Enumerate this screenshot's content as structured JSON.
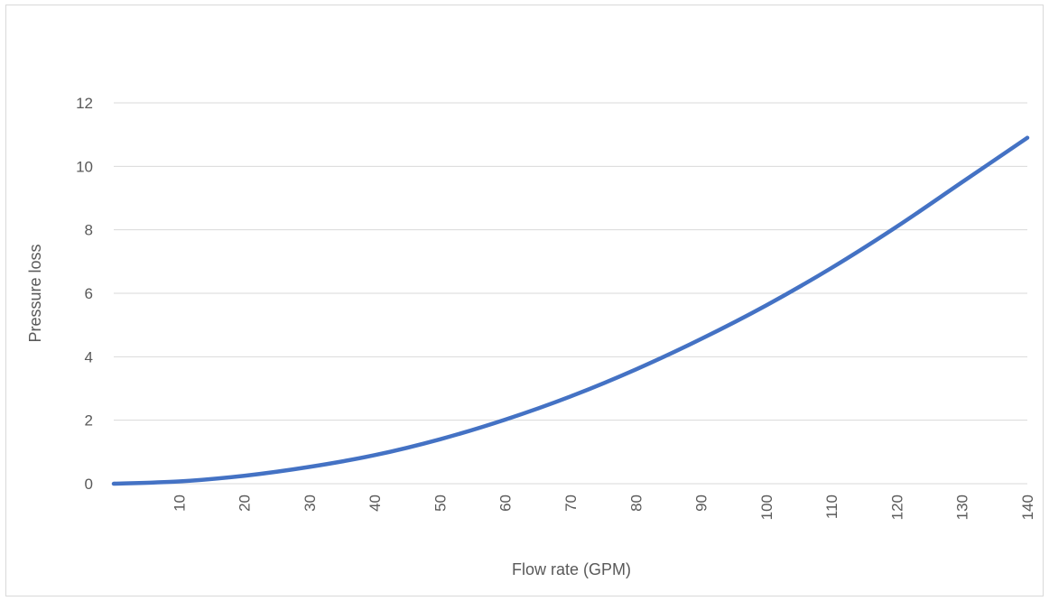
{
  "chart_data": {
    "type": "line",
    "title": "",
    "xlabel": "Flow rate (GPM)",
    "ylabel": "Pressure loss",
    "xlim": [
      0,
      140
    ],
    "ylim": [
      0,
      12
    ],
    "x_ticks": [
      "10",
      "20",
      "30",
      "40",
      "50",
      "60",
      "70",
      "80",
      "90",
      "100",
      "110",
      "120",
      "130",
      "140"
    ],
    "y_ticks": [
      "0",
      "2",
      "4",
      "6",
      "8",
      "10",
      "12"
    ],
    "grid": "horizontal",
    "legend": "none",
    "series": [
      {
        "color": "#4472c4",
        "x": [
          0,
          10,
          20,
          30,
          40,
          50,
          60,
          70,
          80,
          90,
          100,
          110,
          120,
          130,
          140
        ],
        "y": [
          0,
          0.07,
          0.25,
          0.53,
          0.9,
          1.4,
          2.02,
          2.75,
          3.6,
          4.56,
          5.62,
          6.8,
          8.1,
          9.5,
          10.9
        ]
      }
    ]
  }
}
